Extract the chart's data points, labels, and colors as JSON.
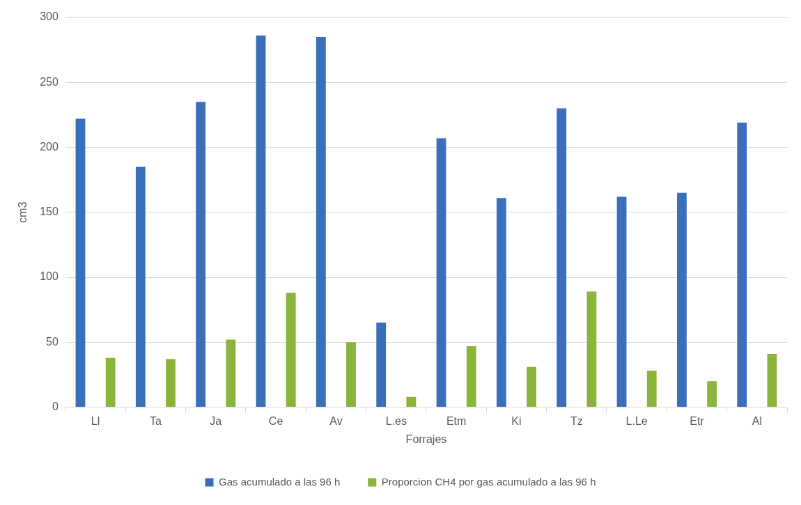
{
  "chart_data": {
    "type": "bar",
    "xlabel": "Forrajes",
    "ylabel": "cm3",
    "categories": [
      "Ll",
      "Ta",
      "Ja",
      "Ce",
      "Av",
      "L.es",
      "Etm",
      "Ki",
      "Tz",
      "L.Le",
      "Etr",
      "Al"
    ],
    "series": [
      {
        "name": "Gas acumulado a las 96 h",
        "color": "#3a6fba",
        "values": [
          222,
          185,
          235,
          286,
          285,
          65,
          207,
          161,
          230,
          162,
          165,
          219
        ]
      },
      {
        "name": "Proporcion CH4 por gas acumulado a las 96 h",
        "color": "#8ab53a",
        "values": [
          38,
          37,
          52,
          88,
          50,
          8,
          47,
          31,
          89,
          28,
          20,
          41
        ]
      }
    ],
    "ylim": [
      0,
      300
    ],
    "yticks": [
      0,
      50,
      100,
      150,
      200,
      250,
      300
    ],
    "grid": "y",
    "legend": "bottom"
  }
}
